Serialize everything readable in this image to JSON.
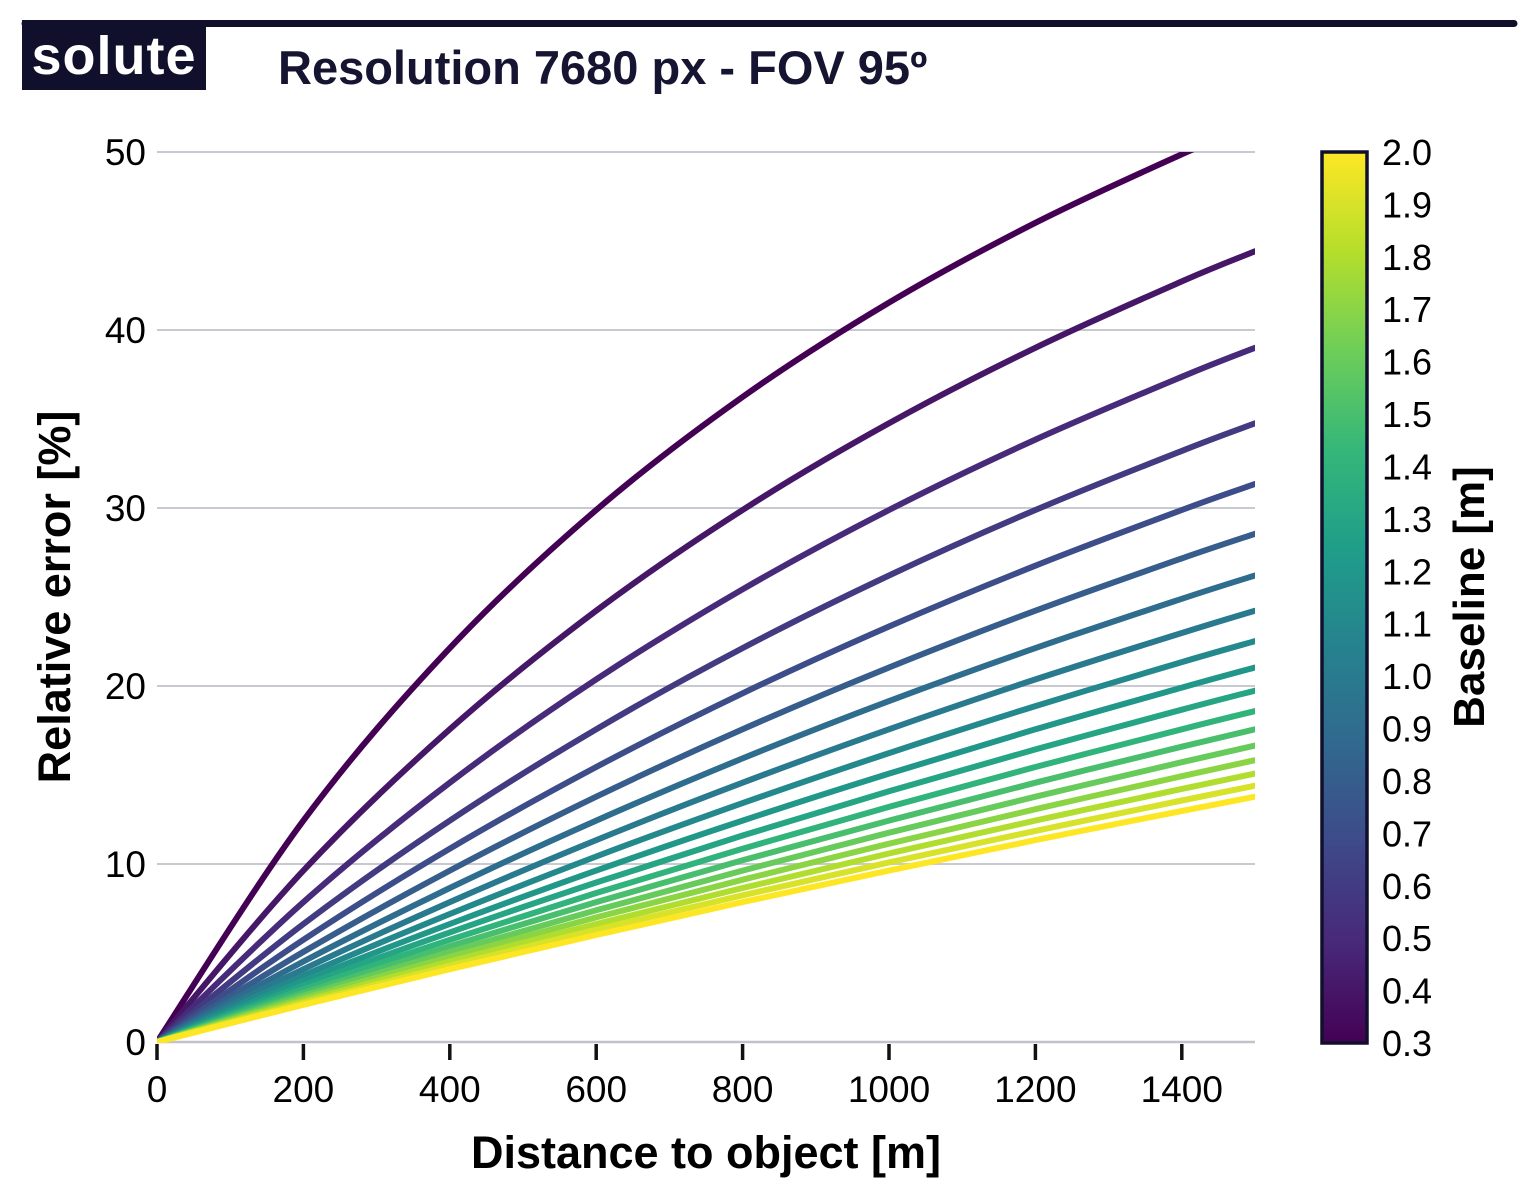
{
  "header": {
    "logo_text": "solute",
    "title": "Resolution 7680 px - FOV 95º"
  },
  "chart_data": {
    "type": "line",
    "title": "Resolution 7680 px - FOV 95º",
    "xlabel": "Distance to object [m]",
    "ylabel": "Relative error [%]",
    "xlim": [
      0,
      1500
    ],
    "ylim": [
      0,
      50
    ],
    "grid": "horizontal",
    "x_tick_labels": [
      "0",
      "200",
      "400",
      "600",
      "800",
      "1000",
      "1200",
      "1400"
    ],
    "x_tick_values": [
      0,
      200,
      400,
      600,
      800,
      1000,
      1200,
      1400
    ],
    "y_tick_labels": [
      "0",
      "10",
      "20",
      "30",
      "40",
      "50"
    ],
    "y_tick_values": [
      0,
      10,
      20,
      30,
      40,
      50
    ],
    "colorbar": {
      "label": "Baseline [m]",
      "min": 0.3,
      "max": 2.0,
      "colormap": "viridis",
      "tick_labels": [
        "2.0",
        "1.9",
        "1.8",
        "1.7",
        "1.6",
        "1.5",
        "1.4",
        "1.3",
        "1.2",
        "1.1",
        "1.0",
        "0.9",
        "0.8",
        "0.7",
        "0.6",
        "0.5",
        "0.4",
        "0.3"
      ],
      "tick_values": [
        2.0,
        1.9,
        1.8,
        1.7,
        1.6,
        1.5,
        1.4,
        1.3,
        1.2,
        1.1,
        1.0,
        0.9,
        0.8,
        0.7,
        0.6,
        0.5,
        0.4,
        0.3
      ]
    },
    "x": [
      0,
      200,
      400,
      600,
      800,
      1000,
      1200,
      1400,
      1500
    ],
    "series": [
      {
        "baseline": 0.3,
        "values": [
          0,
          12.44,
          22.13,
          29.89,
          36.24,
          41.54,
          46.02,
          49.87,
          51.59
        ]
      },
      {
        "baseline": 0.4,
        "values": [
          0,
          9.63,
          17.57,
          24.23,
          29.89,
          34.76,
          39.0,
          42.73,
          44.42
        ]
      },
      {
        "baseline": 0.5,
        "values": [
          0,
          7.86,
          14.57,
          20.37,
          25.43,
          29.89,
          33.84,
          37.37,
          39.0
        ]
      },
      {
        "baseline": 0.6,
        "values": [
          0,
          6.63,
          12.44,
          17.57,
          22.13,
          26.21,
          29.89,
          33.21,
          34.76
        ]
      },
      {
        "baseline": 0.7,
        "values": [
          0,
          5.74,
          10.86,
          15.45,
          19.59,
          23.34,
          26.76,
          29.89,
          31.35
        ]
      },
      {
        "baseline": 0.8,
        "values": [
          0,
          5.06,
          9.63,
          13.78,
          17.57,
          21.04,
          24.23,
          27.17,
          28.55
        ]
      },
      {
        "baseline": 0.9,
        "values": [
          0,
          4.52,
          8.65,
          12.44,
          15.93,
          19.15,
          22.13,
          24.9,
          26.21
        ]
      },
      {
        "baseline": 1.0,
        "values": [
          0,
          4.09,
          7.86,
          11.34,
          14.57,
          17.57,
          20.37,
          22.98,
          24.23
        ]
      },
      {
        "baseline": 1.1,
        "values": [
          0,
          3.73,
          7.19,
          10.42,
          13.42,
          16.23,
          18.87,
          21.34,
          22.52
        ]
      },
      {
        "baseline": 1.2,
        "values": [
          0,
          3.43,
          6.63,
          9.63,
          12.44,
          15.08,
          17.57,
          19.91,
          21.04
        ]
      },
      {
        "baseline": 1.3,
        "values": [
          0,
          3.17,
          6.16,
          8.96,
          11.6,
          14.09,
          16.44,
          18.67,
          19.74
        ]
      },
      {
        "baseline": 1.4,
        "values": [
          0,
          2.96,
          5.74,
          8.37,
          10.86,
          13.21,
          15.45,
          17.57,
          18.59
        ]
      },
      {
        "baseline": 1.5,
        "values": [
          0,
          2.76,
          5.38,
          7.86,
          10.21,
          12.44,
          14.57,
          16.59,
          17.57
        ]
      },
      {
        "baseline": 1.6,
        "values": [
          0,
          2.6,
          5.06,
          7.4,
          9.63,
          11.76,
          13.78,
          15.72,
          16.65
        ]
      },
      {
        "baseline": 1.7,
        "values": [
          0,
          2.45,
          4.78,
          7.0,
          9.12,
          11.14,
          13.08,
          14.93,
          15.83
        ]
      },
      {
        "baseline": 1.8,
        "values": [
          0,
          2.31,
          4.52,
          6.63,
          8.65,
          10.59,
          12.44,
          14.22,
          15.08
        ]
      },
      {
        "baseline": 1.9,
        "values": [
          0,
          2.19,
          4.29,
          6.31,
          8.24,
          10.09,
          11.86,
          13.57,
          14.4
        ]
      },
      {
        "baseline": 2.0,
        "values": [
          0,
          2.09,
          4.09,
          6.01,
          7.86,
          9.63,
          11.34,
          12.98,
          13.78
        ]
      }
    ]
  },
  "colors": {
    "navy": "#10102c",
    "title_text": "#151532",
    "logo_text": "#ffffff",
    "grid": "#c9c9d2",
    "axis_line": "#c2c2cb",
    "tick_mark": "#111111",
    "viridis_anchors": [
      "#440154",
      "#482878",
      "#3e4989",
      "#31688e",
      "#26828e",
      "#1f9e89",
      "#35b779",
      "#6ece58",
      "#b5de2b",
      "#fde725"
    ]
  }
}
